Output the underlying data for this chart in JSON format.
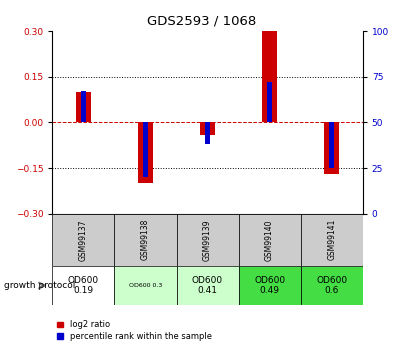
{
  "title": "GDS2593 / 1068",
  "samples": [
    "GSM99137",
    "GSM99138",
    "GSM99139",
    "GSM99140",
    "GSM99141"
  ],
  "log2_ratio": [
    0.1,
    -0.2,
    -0.04,
    0.3,
    -0.17
  ],
  "percentile_rank_pct": [
    67,
    20,
    38,
    72,
    25
  ],
  "ylim_left": [
    -0.3,
    0.3
  ],
  "ylim_right": [
    0,
    100
  ],
  "yticks_left": [
    -0.3,
    -0.15,
    0,
    0.15,
    0.3
  ],
  "yticks_right": [
    0,
    25,
    50,
    75,
    100
  ],
  "red_color": "#cc0000",
  "blue_color": "#0000cc",
  "zero_line_color": "#cc0000",
  "protocol_labels": [
    "OD600\n0.19",
    "OD600 0.3",
    "OD600\n0.41",
    "OD600\n0.49",
    "OD600\n0.6"
  ],
  "protocol_colors": [
    "#ffffff",
    "#ccffcc",
    "#ccffcc",
    "#44dd44",
    "#44dd44"
  ],
  "protocol_small": [
    false,
    true,
    false,
    false,
    false
  ],
  "sample_bg_color": "#cccccc",
  "legend_red": "log2 ratio",
  "legend_blue": "percentile rank within the sample"
}
